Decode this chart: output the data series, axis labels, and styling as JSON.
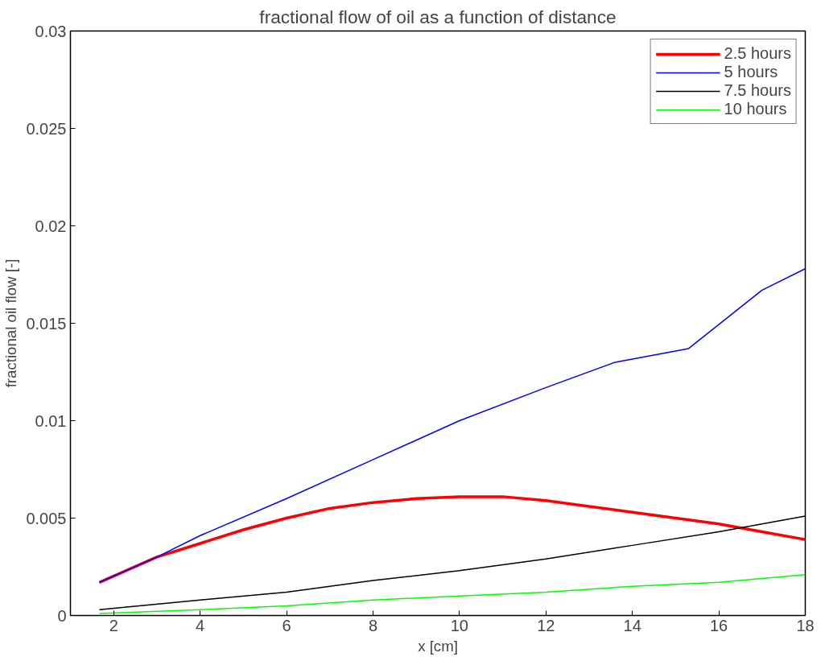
{
  "chart_data": {
    "type": "line",
    "title": "fractional flow of oil as a function of distance",
    "xlabel": "x [cm]",
    "ylabel": "fractional oil flow [-]",
    "xlim": [
      1,
      18
    ],
    "xticks": [
      2,
      4,
      6,
      8,
      10,
      12,
      14,
      16,
      18
    ],
    "ylim": [
      0,
      0.03
    ],
    "yticks": [
      0,
      0.005,
      0.01,
      0.015,
      0.02,
      0.025,
      0.03
    ],
    "grid": false,
    "legend": "top right",
    "line_style": "solid",
    "series": [
      {
        "name": "2.5 hours",
        "color": "#ff0000",
        "x": [
          1.67,
          3,
          4,
          5,
          6,
          7,
          8,
          9,
          10,
          11,
          12,
          13,
          14,
          15,
          16,
          17,
          18
        ],
        "values": [
          0.0017,
          0.003,
          0.0037,
          0.0044,
          0.005,
          0.0055,
          0.0058,
          0.006,
          0.0061,
          0.0061,
          0.0059,
          0.0056,
          0.0053,
          0.005,
          0.0047,
          0.0043,
          0.0039
        ]
      },
      {
        "name": "5 hours",
        "color": "#0000ff",
        "x": [
          1.67,
          3,
          4,
          6,
          8,
          10,
          12,
          13.6,
          15.3,
          17,
          18
        ],
        "values": [
          0.0017,
          0.003,
          0.0041,
          0.006,
          0.008,
          0.01,
          0.0117,
          0.013,
          0.0137,
          0.0167,
          0.0178
        ]
      },
      {
        "name": "7.5 hours",
        "color": "#000000",
        "x": [
          1.67,
          4,
          6,
          8,
          10,
          12,
          14,
          16,
          18
        ],
        "values": [
          0.0003,
          0.0008,
          0.0012,
          0.0018,
          0.0023,
          0.0029,
          0.0036,
          0.0043,
          0.0051
        ]
      },
      {
        "name": "10 hours",
        "color": "#00ff00",
        "x": [
          1.67,
          4,
          6,
          8,
          10,
          12,
          14,
          16,
          18
        ],
        "values": [
          0.0001,
          0.0003,
          0.0005,
          0.0008,
          0.001,
          0.0012,
          0.0015,
          0.0017,
          0.0021
        ]
      }
    ]
  }
}
